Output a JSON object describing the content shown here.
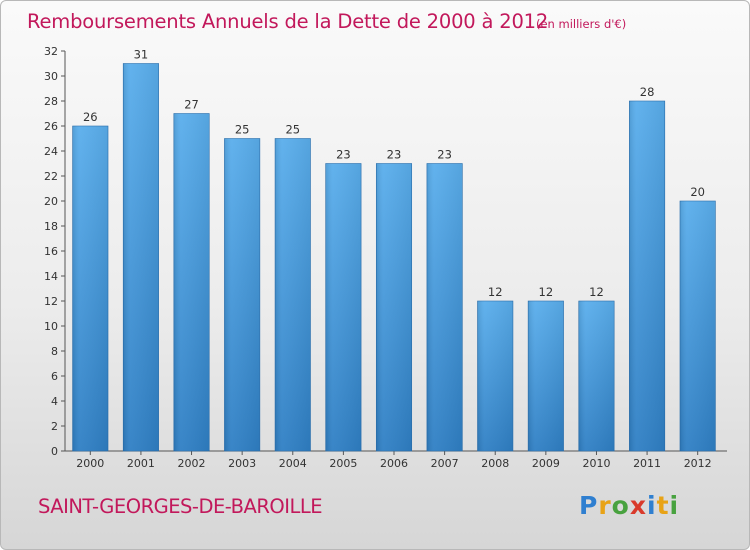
{
  "header": {
    "title": "Remboursements Annuels de la Dette de 2000 à 2012",
    "unit": "(en milliers d'€)"
  },
  "footer": {
    "commune": "SAINT-GEORGES-DE-BAROILLE",
    "logo_letters": [
      "P",
      "r",
      "o",
      "x",
      "i",
      "t",
      "i"
    ],
    "logo_colors": [
      "#2f7fd0",
      "#e8a317",
      "#48a23f",
      "#d93a2b",
      "#2f7fd0",
      "#e8a317",
      "#48a23f"
    ]
  },
  "chart_data": {
    "type": "bar",
    "title": "Remboursements Annuels de la Dette de 2000 à 2012",
    "xlabel": "",
    "ylabel": "",
    "categories": [
      "2000",
      "2001",
      "2002",
      "2003",
      "2004",
      "2005",
      "2006",
      "2007",
      "2008",
      "2009",
      "2010",
      "2011",
      "2012"
    ],
    "values": [
      26,
      31,
      27,
      25,
      25,
      23,
      23,
      23,
      12,
      12,
      12,
      28,
      20
    ],
    "ylim": [
      0,
      32
    ],
    "yticks": [
      0,
      2,
      4,
      6,
      8,
      10,
      12,
      14,
      16,
      18,
      20,
      22,
      24,
      26,
      28,
      30,
      32
    ],
    "grid": false,
    "bar_color": "#4ea3e4"
  }
}
